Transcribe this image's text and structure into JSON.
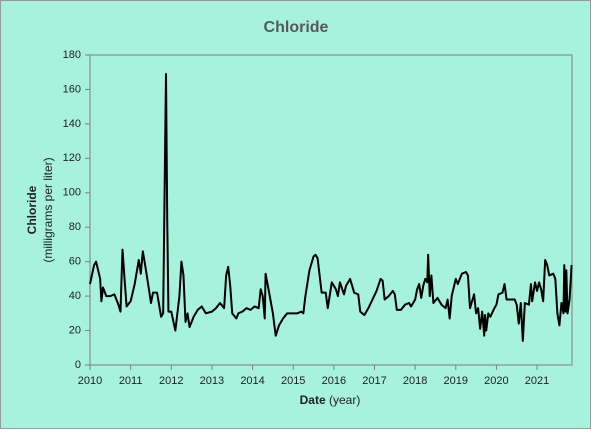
{
  "chart_data": {
    "type": "line",
    "title": "Chloride",
    "x_label": "Date",
    "x_label_unit": "(year)",
    "y_label": "Chloride",
    "y_label_unit": "(milligrams per liter)",
    "xlim": [
      2010,
      2021.86
    ],
    "xticks": [
      2010,
      2011,
      2012,
      2013,
      2014,
      2015,
      2016,
      2017,
      2018,
      2019,
      2020,
      2021
    ],
    "ylim": [
      0,
      180
    ],
    "yticks": [
      0,
      20,
      40,
      60,
      80,
      100,
      120,
      140,
      160,
      180
    ],
    "grid": false,
    "x": [
      2010.0,
      2010.1,
      2010.15,
      2010.25,
      2010.28,
      2010.32,
      2010.4,
      2010.5,
      2010.6,
      2010.7,
      2010.75,
      2010.8,
      2010.85,
      2010.9,
      2011.0,
      2011.1,
      2011.2,
      2011.25,
      2011.3,
      2011.35,
      2011.45,
      2011.5,
      2011.55,
      2011.65,
      2011.75,
      2011.8,
      2011.87,
      2011.9,
      2011.93,
      2012.0,
      2012.1,
      2012.2,
      2012.25,
      2012.3,
      2012.35,
      2012.4,
      2012.45,
      2012.55,
      2012.65,
      2012.75,
      2012.85,
      2013.0,
      2013.1,
      2013.2,
      2013.3,
      2013.35,
      2013.4,
      2013.45,
      2013.5,
      2013.6,
      2013.65,
      2013.75,
      2013.85,
      2013.95,
      2014.05,
      2014.15,
      2014.2,
      2014.25,
      2014.3,
      2014.32,
      2014.4,
      2014.5,
      2014.57,
      2014.65,
      2014.75,
      2014.85,
      2015.0,
      2015.1,
      2015.2,
      2015.25,
      2015.3,
      2015.4,
      2015.5,
      2015.55,
      2015.6,
      2015.65,
      2015.7,
      2015.8,
      2015.85,
      2015.95,
      2016.05,
      2016.1,
      2016.15,
      2016.25,
      2016.3,
      2016.4,
      2016.5,
      2016.6,
      2016.65,
      2016.75,
      2016.85,
      2016.95,
      2017.05,
      2017.15,
      2017.2,
      2017.25,
      2017.35,
      2017.45,
      2017.5,
      2017.55,
      2017.65,
      2017.75,
      2017.85,
      2017.9,
      2018.0,
      2018.05,
      2018.1,
      2018.15,
      2018.2,
      2018.25,
      2018.3,
      2018.32,
      2018.36,
      2018.4,
      2018.45,
      2018.55,
      2018.65,
      2018.75,
      2018.8,
      2018.85,
      2018.9,
      2019.0,
      2019.05,
      2019.15,
      2019.25,
      2019.3,
      2019.35,
      2019.45,
      2019.5,
      2019.55,
      2019.6,
      2019.65,
      2019.7,
      2019.72,
      2019.75,
      2019.8,
      2019.85,
      2019.95,
      2020.0,
      2020.05,
      2020.15,
      2020.2,
      2020.25,
      2020.35,
      2020.45,
      2020.5,
      2020.55,
      2020.6,
      2020.65,
      2020.7,
      2020.8,
      2020.85,
      2020.88,
      2020.95,
      2021.0,
      2021.05,
      2021.1,
      2021.15,
      2021.2,
      2021.25,
      2021.3,
      2021.4,
      2021.45,
      2021.5,
      2021.55,
      2021.6,
      2021.65,
      2021.67,
      2021.7,
      2021.72,
      2021.75,
      2021.8,
      2021.85
    ],
    "series": [
      {
        "color": "#000000",
        "values": [
          47,
          58,
          60,
          50,
          37,
          45,
          40,
          40,
          41,
          35,
          31,
          67,
          50,
          34,
          37,
          47,
          61,
          53,
          66,
          59,
          44,
          36,
          42,
          42,
          28,
          30,
          169,
          85,
          31,
          31,
          20,
          40,
          60,
          52,
          25,
          30,
          22,
          28,
          32,
          34,
          30,
          31,
          33,
          36,
          33,
          52,
          57,
          46,
          30,
          27,
          30,
          31,
          33,
          32,
          34,
          33,
          44,
          40,
          27,
          53,
          43,
          30,
          17,
          23,
          27,
          30,
          30,
          30,
          31,
          30,
          40,
          55,
          63,
          64,
          62,
          52,
          42,
          42,
          33,
          48,
          44,
          40,
          48,
          41,
          46,
          50,
          42,
          41,
          31,
          29,
          33,
          38,
          43,
          50,
          49,
          38,
          40,
          43,
          41,
          32,
          32,
          35,
          36,
          34,
          38,
          44,
          47,
          39,
          46,
          50,
          48,
          64,
          40,
          52,
          36,
          39,
          35,
          33,
          38,
          27,
          40,
          50,
          47,
          53,
          54,
          52,
          33,
          41,
          30,
          33,
          21,
          31,
          17,
          29,
          20,
          30,
          28,
          33,
          35,
          41,
          42,
          47,
          38,
          38,
          38,
          35,
          24,
          36,
          14,
          36,
          35,
          47,
          37,
          48,
          43,
          48,
          44,
          37,
          61,
          58,
          52,
          53,
          50,
          30,
          23,
          36,
          30,
          58,
          31,
          55,
          30,
          38,
          58
        ]
      }
    ]
  }
}
